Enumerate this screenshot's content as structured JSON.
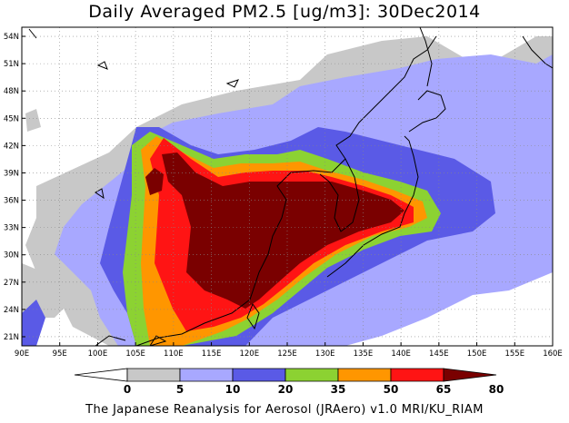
{
  "title": "Daily Averaged PM2.5 [ug/m3]: 30Dec2014",
  "footer": "The Japanese Reanalysis for Aerosol (JRAero) v1.0 MRI/KU_RIAM",
  "map": {
    "lon_range": [
      90,
      160
    ],
    "lat_range": [
      20,
      55
    ],
    "x_ticks": [
      "90E",
      "95E",
      "100E",
      "105E",
      "110E",
      "115E",
      "120E",
      "125E",
      "130E",
      "135E",
      "140E",
      "145E",
      "150E",
      "155E",
      "160E"
    ],
    "y_ticks": [
      "21N",
      "24N",
      "27N",
      "30N",
      "33N",
      "36N",
      "39N",
      "42N",
      "45N",
      "48N",
      "51N",
      "54N"
    ],
    "grid": "dotted"
  },
  "colorbar": {
    "levels": [
      "0",
      "5",
      "10",
      "20",
      "35",
      "50",
      "65",
      "80"
    ],
    "colors": [
      "#ffffff",
      "#c8c8c8",
      "#a8a8ff",
      "#5a5ae6",
      "#8cd232",
      "#ff9600",
      "#ff1414",
      "#7a0000"
    ]
  }
}
